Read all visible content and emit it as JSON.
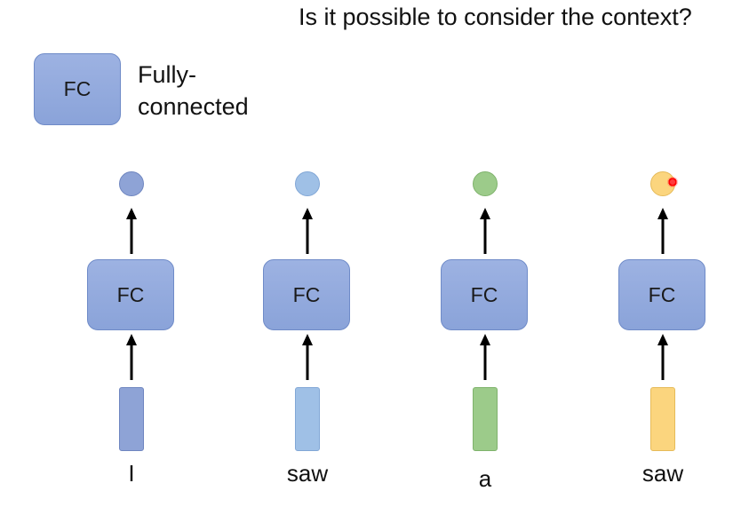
{
  "title": "Is it possible to consider the context?",
  "legend": {
    "box_label": "FC",
    "text_line1": "Fully-",
    "text_line2": "connected"
  },
  "columns": [
    {
      "word": "I",
      "fc_label": "FC",
      "color": "#8ea3d6",
      "border": "#6f86c0"
    },
    {
      "word": "saw",
      "fc_label": "FC",
      "color": "#9fc0e6",
      "border": "#82a7d6"
    },
    {
      "word": "a",
      "fc_label": "FC",
      "color": "#9ccb8a",
      "border": "#7fb36c"
    },
    {
      "word": "saw",
      "fc_label": "FC",
      "color": "#fbd57e",
      "border": "#e6bb5a"
    }
  ]
}
